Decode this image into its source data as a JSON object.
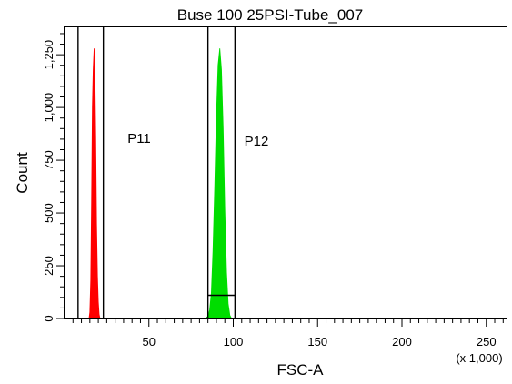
{
  "chart_data": {
    "type": "histogram",
    "title": "Buse 100 25PSI-Tube_007",
    "xlabel": "FSC-A",
    "x_multiplier_label": "(x 1,000)",
    "ylabel": "Count",
    "xlim": [
      0,
      262
    ],
    "ylim": [
      0,
      1380
    ],
    "x_ticks": [
      50,
      100,
      150,
      200,
      250
    ],
    "y_ticks": [
      0,
      250,
      500,
      750,
      1000,
      1250
    ],
    "y_tick_labels": [
      "0",
      "250",
      "500",
      "750",
      "1,000",
      "1,250"
    ],
    "grid": false,
    "series": [
      {
        "color": "#ff0000",
        "x": [
          14.5,
          15,
          15.5,
          16,
          16.5,
          17,
          17.5,
          18,
          18.5,
          19,
          19.5,
          20,
          20.5,
          21
        ],
        "values": [
          0,
          30,
          180,
          550,
          1000,
          1180,
          1280,
          1150,
          850,
          450,
          200,
          80,
          20,
          0
        ]
      },
      {
        "color": "#00dd00",
        "x": [
          83,
          85,
          86,
          87,
          88,
          89,
          90,
          91,
          92,
          93,
          94,
          95,
          96,
          97,
          98,
          99
        ],
        "values": [
          0,
          10,
          40,
          120,
          320,
          620,
          950,
          1200,
          1280,
          1180,
          900,
          520,
          220,
          70,
          15,
          0
        ]
      }
    ],
    "gates": [
      {
        "label": "P11",
        "x_min": 8,
        "x_max": 23,
        "bar_count": 0
      },
      {
        "label": "P12",
        "x_min": 85,
        "x_max": 101,
        "bar_count": 110
      }
    ]
  }
}
